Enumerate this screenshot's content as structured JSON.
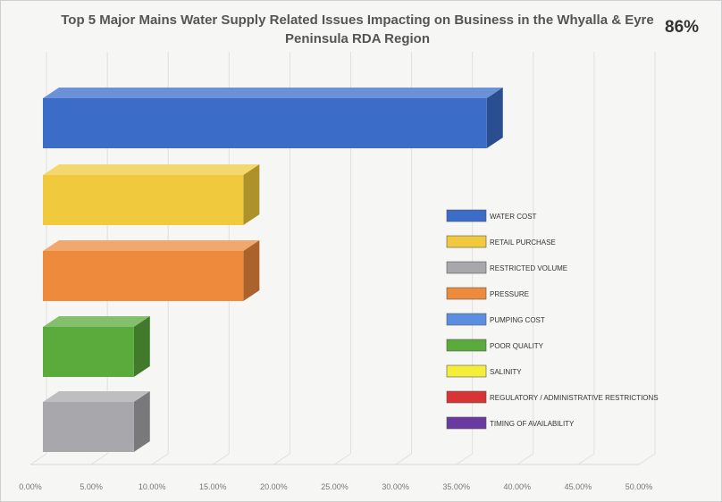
{
  "chart_data": {
    "type": "bar",
    "orientation": "horizontal",
    "style": "3d",
    "title": "Top 5 Major Mains Water Supply Related Issues Impacting on Business in the Whyalla & Eyre Peninsula RDA Region",
    "badge": "86%",
    "categories": [
      "WATER COST",
      "RETAIL PURCHASE",
      "PRESSURE",
      "POOR QUALITY",
      "RESTRICTED VOLUME"
    ],
    "values": [
      37.5,
      17.5,
      17.5,
      8.5,
      8.5
    ],
    "bar_colors": [
      "#3a6cc8",
      "#f0c93c",
      "#ee8a3c",
      "#5aaa3c",
      "#a8a8ac"
    ],
    "xlim": [
      0,
      50
    ],
    "xticks": [
      "0.00%",
      "5.00%",
      "10.00%",
      "15.00%",
      "20.00%",
      "25.00%",
      "30.00%",
      "35.00%",
      "40.00%",
      "45.00%",
      "50.00%"
    ],
    "grid": true,
    "legend_position": "right",
    "legend": [
      {
        "label": "WATER COST",
        "color": "#3a6cc8"
      },
      {
        "label": "RETAIL PURCHASE",
        "color": "#f0c93c"
      },
      {
        "label": "RESTRICTED VOLUME",
        "color": "#a8a8ac"
      },
      {
        "label": "PRESSURE",
        "color": "#ee8a3c"
      },
      {
        "label": "PUMPING COST",
        "color": "#5b8ee0"
      },
      {
        "label": "POOR QUALITY",
        "color": "#5aaa3c"
      },
      {
        "label": "SALINITY",
        "color": "#f4ee3a"
      },
      {
        "label": "REGULATORY / ADMINISTRATIVE RESTRICTIONS",
        "color": "#d83434"
      },
      {
        "label": "TIMING OF AVAILABILITY",
        "color": "#6a3aa0"
      }
    ]
  }
}
